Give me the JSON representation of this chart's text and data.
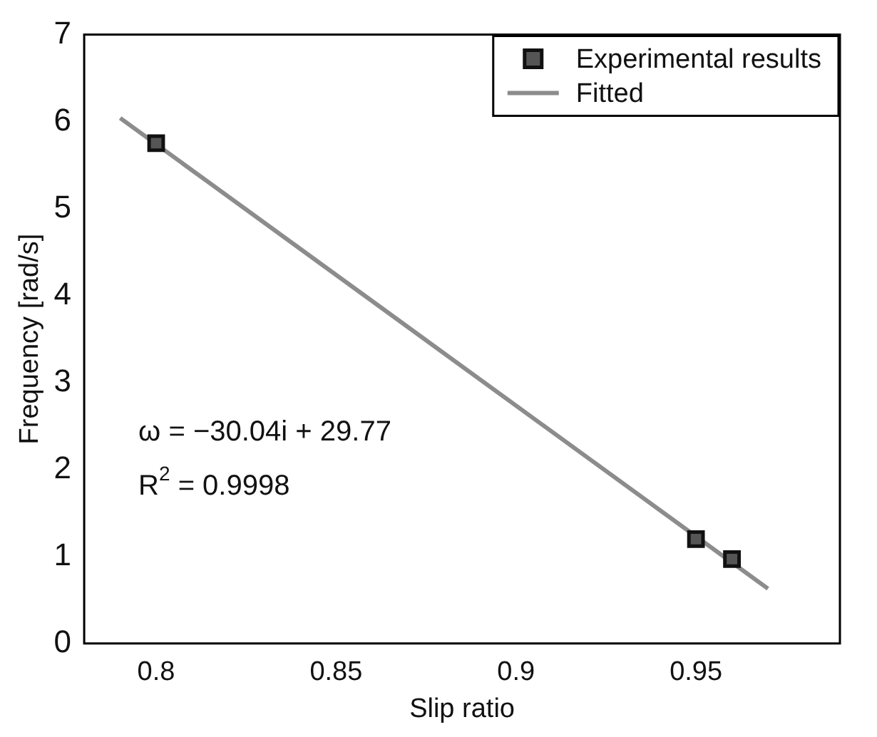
{
  "chart_data": {
    "type": "scatter",
    "xlabel": "Slip ratio",
    "ylabel": "Frequency [rad/s]",
    "xlim": [
      0.78,
      0.99
    ],
    "xticks": [
      0.8,
      0.85,
      0.9,
      0.95
    ],
    "ylim": [
      0,
      7
    ],
    "yticks": [
      0,
      1,
      2,
      3,
      4,
      5,
      6,
      7
    ],
    "grid": false,
    "legend": "top right",
    "series": [
      {
        "name": "Experimental results",
        "marker": "square",
        "color": "#555555",
        "x": [
          0.8,
          0.95,
          0.96
        ],
        "values": [
          5.75,
          1.2,
          0.97
        ]
      },
      {
        "name": "Fitted",
        "type": "line",
        "marker": "none",
        "color": "#8c8c8c",
        "x": [
          0.79,
          0.97
        ],
        "values": [
          6.04,
          0.63
        ]
      }
    ],
    "annotations": [
      "ω = −30.04i + 29.77",
      "R$^{2}$ = 0.9998"
    ]
  }
}
